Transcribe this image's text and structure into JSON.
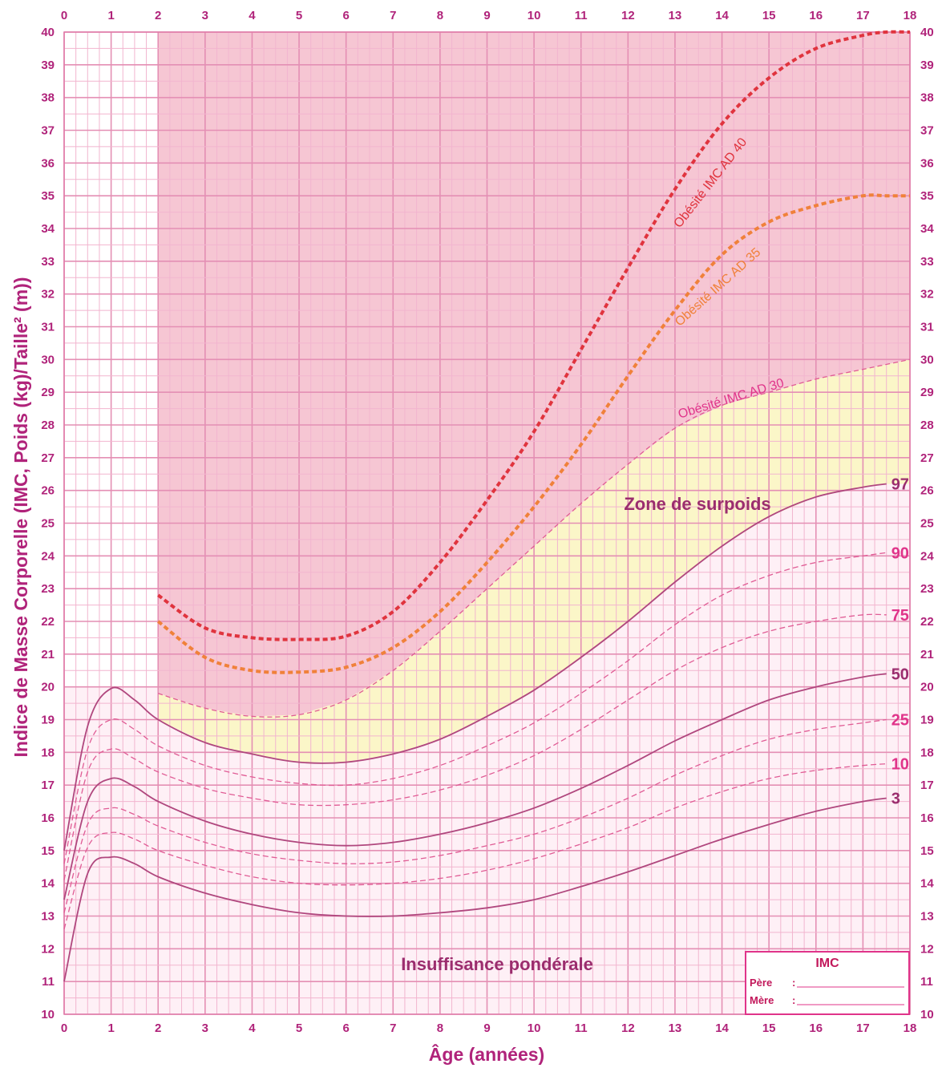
{
  "chart_data": {
    "type": "line",
    "xlabel": "Âge (années)",
    "ylabel": "Indice de Masse Corporelle (IMC, Poids (kg)/Taille² (m))",
    "xlim": [
      0,
      18
    ],
    "ylim": [
      10,
      40
    ],
    "x_ticks": [
      "0",
      "1",
      "2",
      "3",
      "4",
      "5",
      "6",
      "7",
      "8",
      "9",
      "10",
      "11",
      "12",
      "13",
      "14",
      "15",
      "16",
      "17",
      "18"
    ],
    "y_ticks": [
      "10",
      "11",
      "12",
      "13",
      "14",
      "15",
      "16",
      "17",
      "18",
      "19",
      "20",
      "21",
      "22",
      "23",
      "24",
      "25",
      "26",
      "27",
      "28",
      "29",
      "30",
      "31",
      "32",
      "33",
      "34",
      "35",
      "36",
      "37",
      "38",
      "39",
      "40"
    ],
    "grid": true,
    "zones": [
      {
        "name": "Zone de surpoids",
        "color": "#fbf6c8"
      },
      {
        "name": "Insuffisance pondérale",
        "color": "#fde3ee"
      }
    ],
    "series": [
      {
        "name": "97",
        "style": "solid",
        "color": "#b0477e",
        "x": [
          0,
          0.5,
          1,
          1.5,
          2,
          3,
          4,
          5,
          6,
          7,
          8,
          9,
          10,
          11,
          12,
          13,
          14,
          15,
          16,
          17,
          17.5
        ],
        "y": [
          15,
          18.8,
          19.95,
          19.6,
          19.0,
          18.3,
          17.95,
          17.7,
          17.7,
          17.95,
          18.4,
          19.1,
          19.9,
          20.9,
          22.0,
          23.2,
          24.3,
          25.2,
          25.8,
          26.1,
          26.2
        ]
      },
      {
        "name": "90",
        "style": "dashed",
        "color": "#e05c95",
        "x": [
          0,
          0.5,
          1,
          1.5,
          2,
          3,
          4,
          5,
          6,
          7,
          8,
          9,
          10,
          11,
          12,
          13,
          14,
          15,
          16,
          17,
          17.5
        ],
        "y": [
          14.6,
          18.1,
          19.0,
          18.7,
          18.2,
          17.6,
          17.25,
          17.05,
          17.0,
          17.2,
          17.6,
          18.2,
          18.9,
          19.8,
          20.8,
          21.9,
          22.8,
          23.4,
          23.8,
          24.0,
          24.1
        ]
      },
      {
        "name": "75",
        "style": "dashed",
        "color": "#e05c95",
        "x": [
          0,
          0.5,
          1,
          1.5,
          2,
          3,
          4,
          5,
          6,
          7,
          8,
          9,
          10,
          11,
          12,
          13,
          14,
          15,
          16,
          17,
          17.5
        ],
        "y": [
          14.1,
          17.4,
          18.1,
          17.8,
          17.4,
          16.9,
          16.6,
          16.4,
          16.4,
          16.55,
          16.85,
          17.3,
          17.9,
          18.7,
          19.6,
          20.5,
          21.2,
          21.7,
          22.0,
          22.2,
          22.2
        ]
      },
      {
        "name": "50",
        "style": "solid",
        "color": "#b0477e",
        "x": [
          0,
          0.5,
          1,
          1.5,
          2,
          3,
          4,
          5,
          6,
          7,
          8,
          9,
          10,
          11,
          12,
          13,
          14,
          15,
          16,
          17,
          17.5
        ],
        "y": [
          13.5,
          16.5,
          17.2,
          16.95,
          16.5,
          15.9,
          15.5,
          15.25,
          15.15,
          15.25,
          15.5,
          15.85,
          16.3,
          16.9,
          17.6,
          18.35,
          19.0,
          19.6,
          20.0,
          20.3,
          20.4
        ]
      },
      {
        "name": "25",
        "style": "dashed",
        "color": "#e05c95",
        "x": [
          0,
          0.5,
          1,
          1.5,
          2,
          3,
          4,
          5,
          6,
          7,
          8,
          9,
          10,
          11,
          12,
          13,
          14,
          15,
          16,
          17,
          17.5
        ],
        "y": [
          13.1,
          15.8,
          16.3,
          16.1,
          15.75,
          15.25,
          14.9,
          14.7,
          14.6,
          14.65,
          14.85,
          15.15,
          15.5,
          16.0,
          16.6,
          17.3,
          17.9,
          18.4,
          18.7,
          18.9,
          19.0
        ]
      },
      {
        "name": "10",
        "style": "dashed",
        "color": "#e05c95",
        "x": [
          0,
          0.5,
          1,
          1.5,
          2,
          3,
          4,
          5,
          6,
          7,
          8,
          9,
          10,
          11,
          12,
          13,
          14,
          15,
          16,
          17,
          17.5
        ],
        "y": [
          12.6,
          15.1,
          15.55,
          15.35,
          15.0,
          14.55,
          14.2,
          14.0,
          13.95,
          14.0,
          14.15,
          14.4,
          14.75,
          15.2,
          15.7,
          16.3,
          16.8,
          17.2,
          17.45,
          17.6,
          17.65
        ]
      },
      {
        "name": "3",
        "style": "solid",
        "color": "#b0477e",
        "x": [
          0,
          0.5,
          1,
          1.5,
          2,
          3,
          4,
          5,
          6,
          7,
          8,
          9,
          10,
          11,
          12,
          13,
          14,
          15,
          16,
          17,
          17.5
        ],
        "y": [
          11,
          14.3,
          14.8,
          14.6,
          14.2,
          13.7,
          13.35,
          13.1,
          13.0,
          13.0,
          13.1,
          13.25,
          13.5,
          13.9,
          14.35,
          14.85,
          15.35,
          15.8,
          16.2,
          16.5,
          16.6
        ]
      },
      {
        "name": "Obésité IMC AD 30",
        "style": "thin-dashed",
        "color": "#e05c95",
        "x": [
          2,
          3,
          4,
          5,
          6,
          7,
          8,
          9,
          10,
          11,
          12,
          13,
          14,
          15,
          16,
          17,
          18
        ],
        "y": [
          19.8,
          19.35,
          19.1,
          19.15,
          19.6,
          20.5,
          21.7,
          23.0,
          24.3,
          25.6,
          26.8,
          27.9,
          28.6,
          29.0,
          29.4,
          29.7,
          30.0
        ]
      },
      {
        "name": "Obésité IMC AD 35",
        "style": "dotted",
        "color": "#f0813a",
        "x": [
          2,
          3,
          4,
          5,
          6,
          7,
          8,
          9,
          10,
          11,
          12,
          13,
          14,
          15,
          16,
          17,
          17.5,
          18
        ],
        "y": [
          22.0,
          20.9,
          20.5,
          20.45,
          20.6,
          21.2,
          22.3,
          23.8,
          25.5,
          27.4,
          29.5,
          31.5,
          33.2,
          34.2,
          34.7,
          35.0,
          35.0,
          35.0
        ]
      },
      {
        "name": "Obésité IMC AD 40",
        "style": "dotted",
        "color": "#e0343e",
        "x": [
          2,
          3,
          4,
          5,
          6,
          7,
          8,
          9,
          10,
          11,
          12,
          13,
          14,
          15,
          16,
          17,
          17.5,
          18
        ],
        "y": [
          22.8,
          21.8,
          21.5,
          21.45,
          21.55,
          22.3,
          23.8,
          25.7,
          27.8,
          30.3,
          32.8,
          35.2,
          37.2,
          38.6,
          39.5,
          39.9,
          40.0,
          40.0
        ]
      }
    ],
    "annotations": [
      "Zone de surpoids",
      "Insuffisance pondérale"
    ]
  },
  "imc_box": {
    "title": "IMC",
    "pere_label": "Père",
    "mere_label": "Mère",
    "separator": ":"
  }
}
